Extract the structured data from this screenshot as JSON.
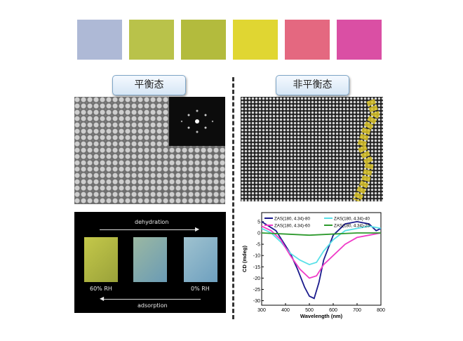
{
  "colors": [
    "#aeb9d6",
    "#b9c24a",
    "#b3bb3d",
    "#e0d632",
    "#e46880",
    "#da4fa4"
  ],
  "labels": {
    "equilibrium": "平衡态",
    "nonequilibrium": "非平衡态"
  },
  "photo": {
    "top_label": "dehydration",
    "bottom_label": "adsorption",
    "rh_left": "60% RH",
    "rh_right": "0% RH"
  },
  "chart_data": {
    "type": "line",
    "xlabel": "Wavelength (nm)",
    "ylabel": "CD (mdeg)",
    "xlim": [
      300,
      800
    ],
    "ylim": [
      -32,
      9
    ],
    "xticks": [
      300,
      400,
      500,
      600,
      700,
      800
    ],
    "yticks": [
      5,
      0,
      -5,
      -10,
      -15,
      -20,
      -25,
      -30
    ],
    "legend_position": "top",
    "series": [
      {
        "name": "ZAS(180, 4.34)-80",
        "color": "#1a1a8c",
        "x": [
          300,
          330,
          360,
          390,
          420,
          450,
          480,
          500,
          520,
          540,
          560,
          600,
          650,
          700,
          750,
          780,
          800
        ],
        "y": [
          5,
          3,
          1,
          -4,
          -9,
          -16,
          -24,
          -28,
          -29,
          -22,
          -12,
          -1,
          4,
          5,
          4,
          1,
          2
        ]
      },
      {
        "name": "ZAS(180, 4.34)-40",
        "color": "#59e0e8",
        "x": [
          300,
          340,
          380,
          420,
          460,
          500,
          530,
          560,
          600,
          650,
          700,
          750,
          800
        ],
        "y": [
          2,
          0,
          -4,
          -9,
          -12,
          -14,
          -13,
          -8,
          -3,
          1,
          2,
          3,
          2
        ]
      },
      {
        "name": "ZAS(180, 4.34)-60",
        "color": "#f03cc8",
        "x": [
          300,
          340,
          380,
          420,
          460,
          500,
          530,
          560,
          600,
          650,
          700,
          750,
          800
        ],
        "y": [
          3,
          1,
          -3,
          -10,
          -16,
          -20,
          -19,
          -14,
          -10,
          -5,
          -2,
          -1,
          0
        ]
      },
      {
        "name": "ZAS(180, 4.34)-25",
        "color": "#2e9a2e",
        "x": [
          300,
          400,
          500,
          600,
          700,
          800
        ],
        "y": [
          0,
          -0.5,
          -1,
          -0.5,
          0,
          0
        ]
      }
    ]
  }
}
